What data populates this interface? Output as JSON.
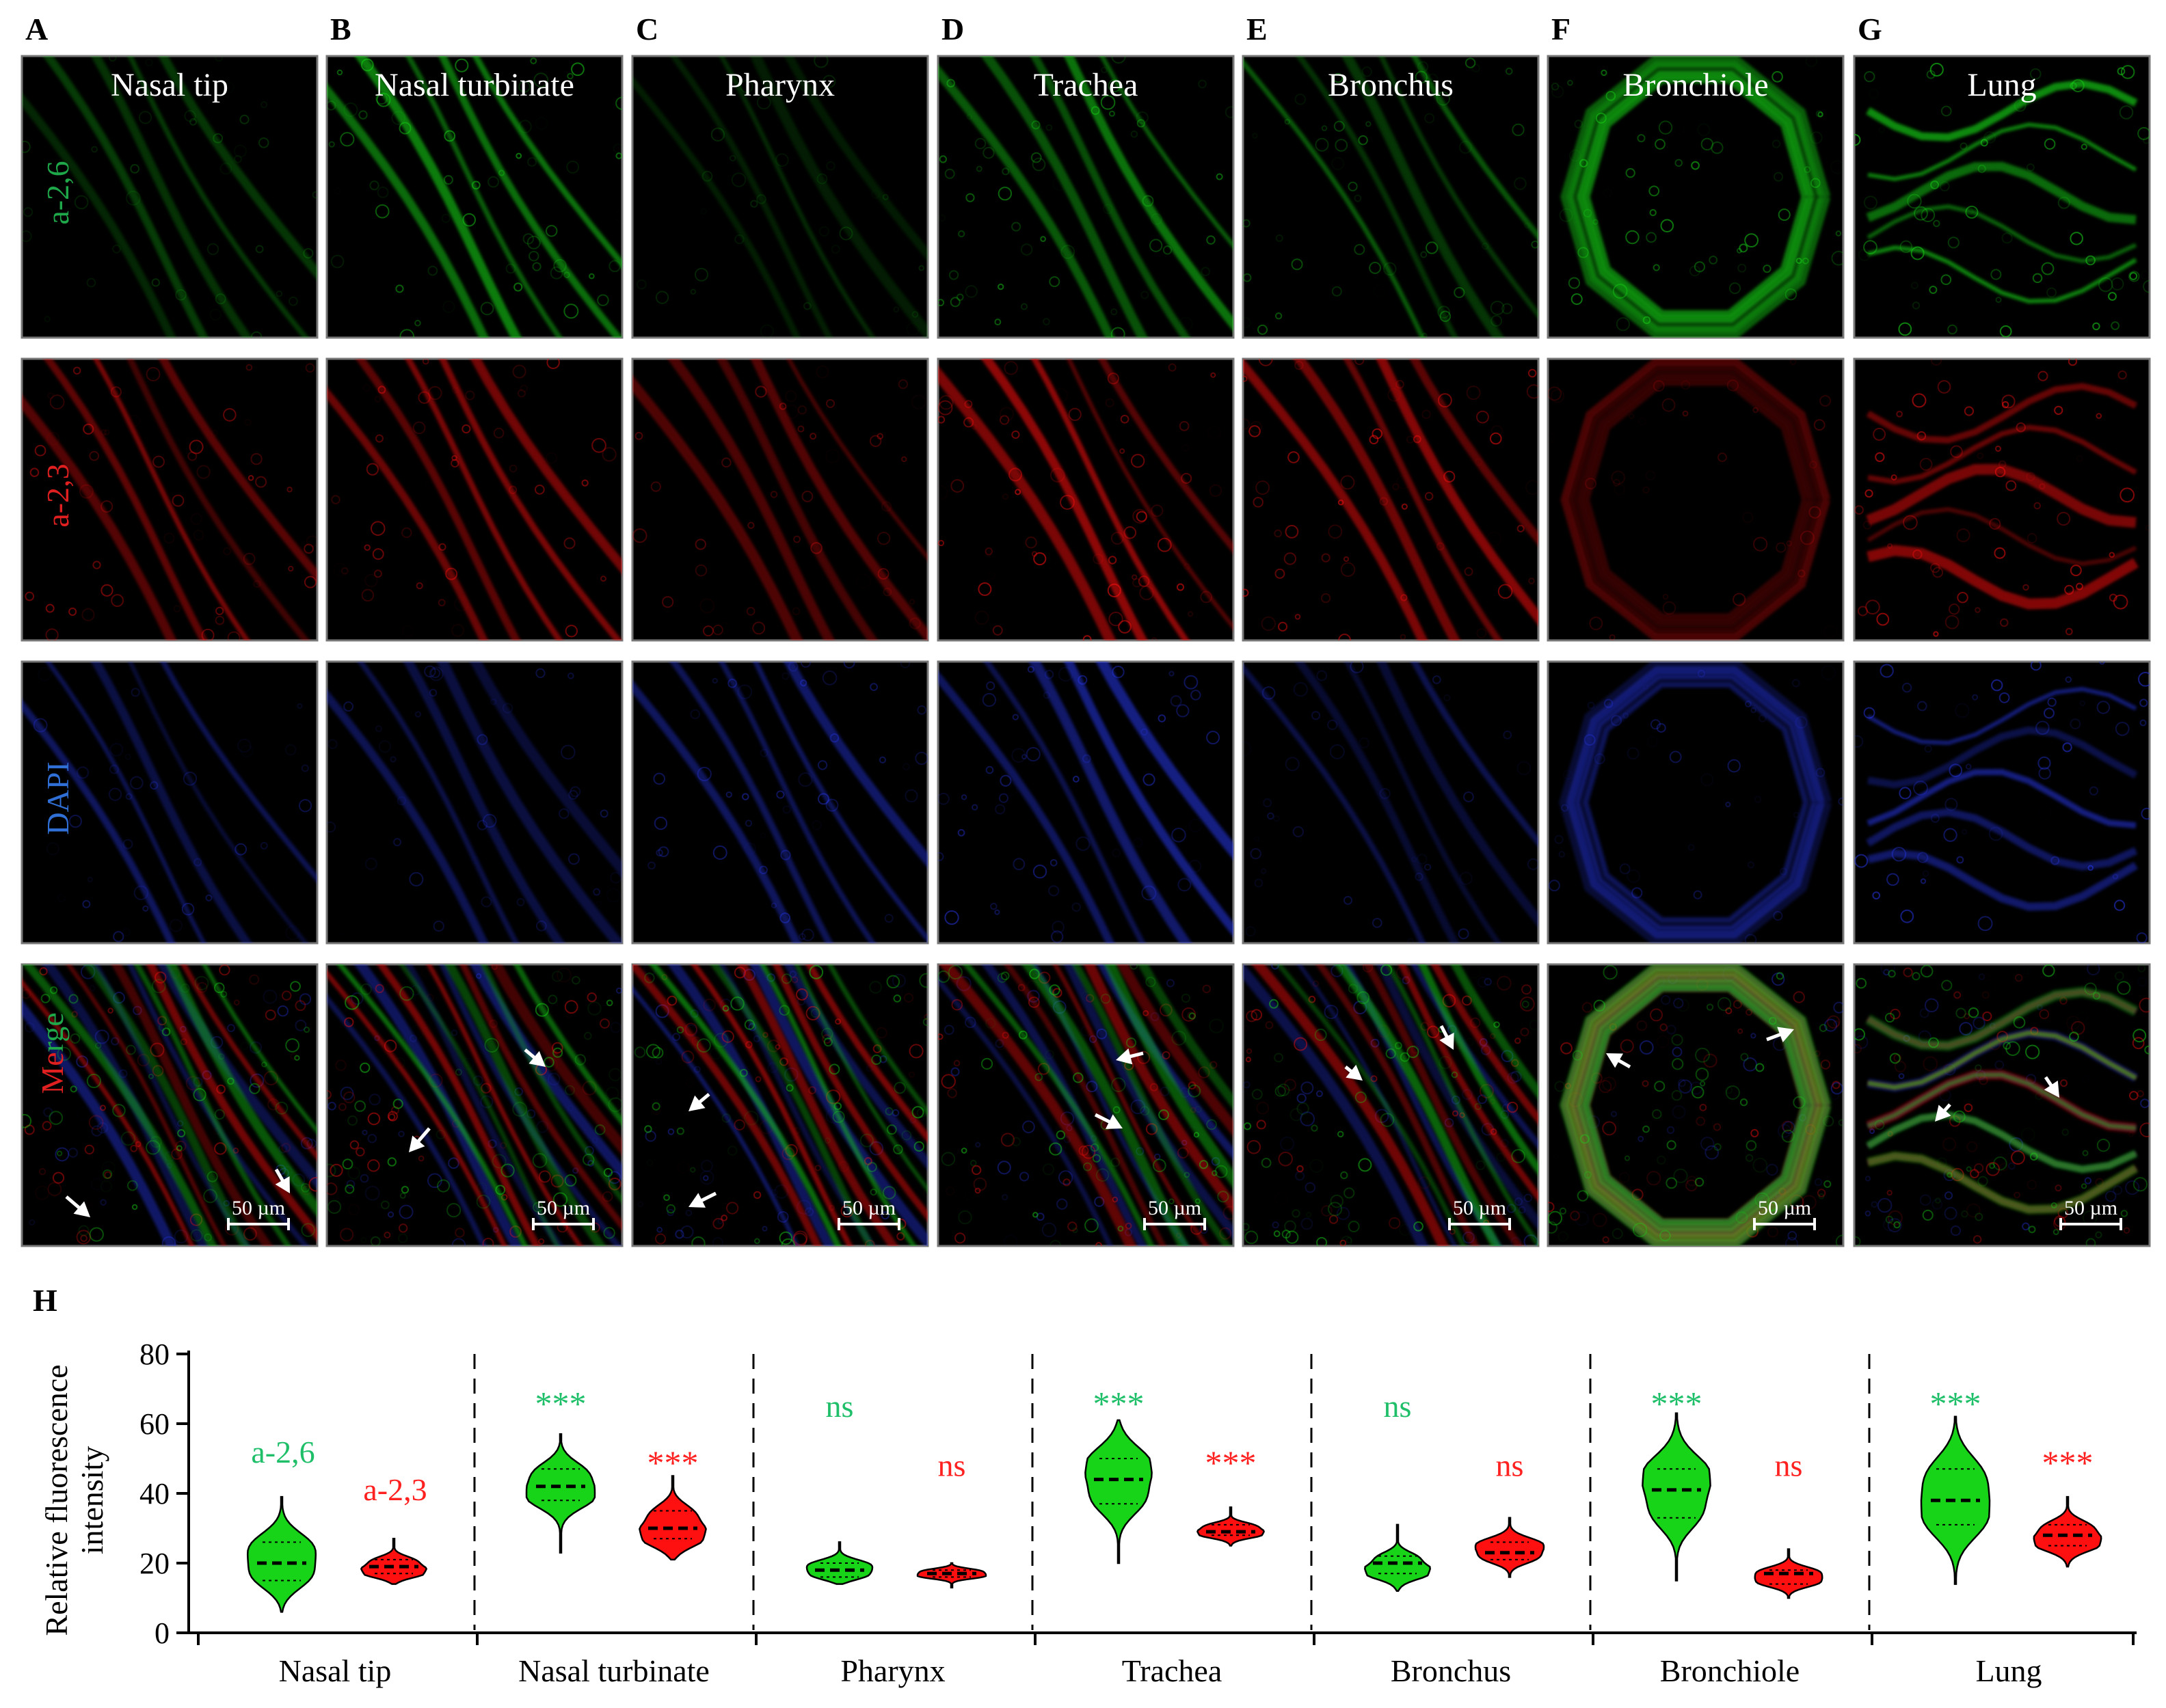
{
  "panel_letters": [
    "A",
    "B",
    "C",
    "D",
    "E",
    "F",
    "G"
  ],
  "chart_letter": "H",
  "tissues": [
    "Nasal tip",
    "Nasal turbinate",
    "Pharynx",
    "Trachea",
    "Bronchus",
    "Bronchiole",
    "Lung"
  ],
  "row_labels": [
    {
      "text": "a-2,6",
      "color": "#1fa84a"
    },
    {
      "text": "a-2,3",
      "color": "#e02020"
    },
    {
      "text": "DAPI",
      "color": "#2f6fd6"
    }
  ],
  "merge_label": [
    {
      "text": "Merge",
      "color": "#e02020"
    },
    {
      "text": "Merge",
      "color": "#1fa84a"
    }
  ],
  "scale_bar": "50 µm",
  "colors": {
    "green": "#18d418",
    "red": "#ff1010",
    "blue": "#2a3cff",
    "panel_bg": "#000000",
    "stat_green": "#1fbf6a",
    "stat_red": "#ff2020"
  },
  "chart_data": {
    "type": "violin",
    "ylabel": "Relative fluorescence intensity",
    "ylim": [
      0,
      80
    ],
    "yticks": [
      "0",
      "20",
      "40",
      "60",
      "80"
    ],
    "legend_text": [
      "a-2,6",
      "a-2,3"
    ],
    "categories": [
      "Nasal tip",
      "Nasal turbinate",
      "Pharynx",
      "Trachea",
      "Bronchus",
      "Bronchiole",
      "Lung"
    ],
    "series": [
      {
        "name": "a-2,6",
        "color": "#18d418",
        "violins": [
          {
            "min": 6,
            "q1": 15,
            "median": 20,
            "q3": 26,
            "max": 39,
            "mode": 21
          },
          {
            "min": 23,
            "q1": 38,
            "median": 42,
            "q3": 47,
            "max": 57,
            "mode": 42
          },
          {
            "min": 14,
            "q1": 16,
            "median": 18,
            "q3": 20,
            "max": 26,
            "mode": 18
          },
          {
            "min": 20,
            "q1": 37,
            "median": 44,
            "q3": 50,
            "max": 61,
            "mode": 46
          },
          {
            "min": 12,
            "q1": 17,
            "median": 20,
            "q3": 22,
            "max": 31,
            "mode": 18
          },
          {
            "min": 15,
            "q1": 33,
            "median": 41,
            "q3": 47,
            "max": 63,
            "mode": 43
          },
          {
            "min": 14,
            "q1": 31,
            "median": 38,
            "q3": 47,
            "max": 62,
            "mode": 39
          }
        ],
        "significance": [
          "",
          "***",
          "ns",
          "***",
          "ns",
          "***",
          "***"
        ]
      },
      {
        "name": "a-2,3",
        "color": "#ff1010",
        "violins": [
          {
            "min": 14,
            "q1": 17,
            "median": 19,
            "q3": 21,
            "max": 27,
            "mode": 18
          },
          {
            "min": 21,
            "q1": 27,
            "median": 30,
            "q3": 35,
            "max": 45,
            "mode": 29
          },
          {
            "min": 13,
            "q1": 16,
            "median": 17,
            "q3": 18,
            "max": 20,
            "mode": 17
          },
          {
            "min": 25,
            "q1": 28,
            "median": 29,
            "q3": 31,
            "max": 36,
            "mode": 29
          },
          {
            "min": 16,
            "q1": 21,
            "median": 23,
            "q3": 26,
            "max": 33,
            "mode": 24
          },
          {
            "min": 10,
            "q1": 14,
            "median": 17,
            "q3": 18,
            "max": 24,
            "mode": 16
          },
          {
            "min": 19,
            "q1": 25,
            "median": 28,
            "q3": 31,
            "max": 39,
            "mode": 27
          }
        ],
        "significance": [
          "",
          "***",
          "ns",
          "***",
          "ns",
          "ns",
          "***"
        ]
      }
    ]
  }
}
